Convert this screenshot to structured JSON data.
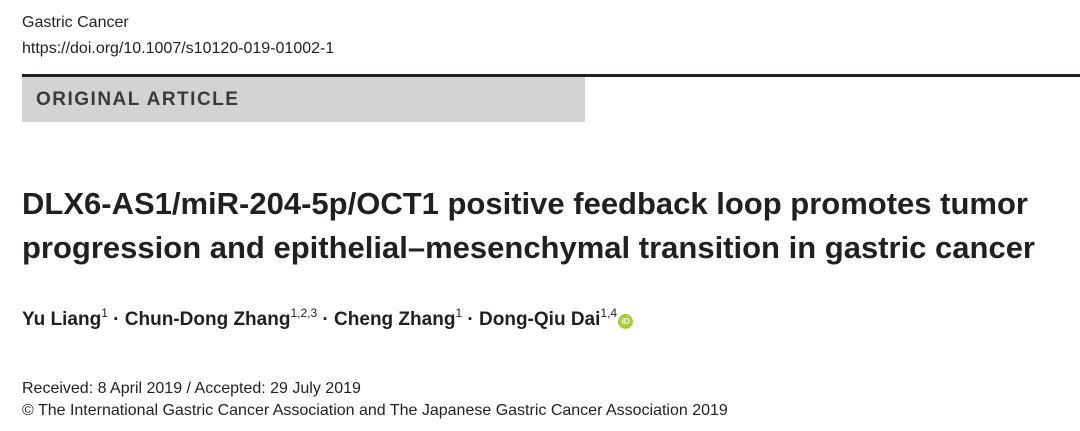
{
  "header": {
    "journal": "Gastric Cancer",
    "doi": "https://doi.org/10.1007/s10120-019-01002-1"
  },
  "article_type": "ORIGINAL ARTICLE",
  "title": {
    "line1": "DLX6-AS1/miR-204-5p/OCT1 positive feedback loop promotes tumor",
    "line2": "progression and epithelial–mesenchymal transition in gastric cancer"
  },
  "authors": [
    {
      "name": "Yu Liang",
      "affiliations": "1"
    },
    {
      "name": "Chun-Dong Zhang",
      "affiliations": "1,2,3"
    },
    {
      "name": "Cheng Zhang",
      "affiliations": "1"
    },
    {
      "name": "Dong-Qiu Dai",
      "affiliations": "1,4"
    }
  ],
  "author_separator": " · ",
  "orcid_icon_text": "iD",
  "dates": "Received: 8 April 2019 / Accepted: 29 July 2019",
  "copyright": "© The International Gastric Cancer Association and The Japanese Gastric Cancer Association 2019",
  "colors": {
    "text": "#231f20",
    "banner": "#d3d3d3",
    "orcid": "#a6ce39"
  }
}
